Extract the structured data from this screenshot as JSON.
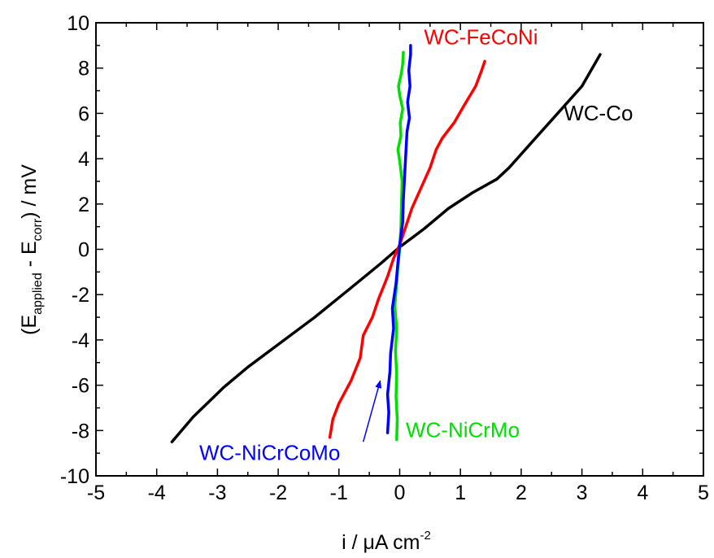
{
  "chart_data": {
    "type": "line",
    "xlabel": "i / μA cm",
    "xlabel_sup": "-2",
    "ylabel": {
      "open": "(E",
      "sub1": "applied",
      "mid": " - E",
      "sub2": "corr",
      "close": ") / mV"
    },
    "xlim": [
      -5,
      5
    ],
    "ylim": [
      -10,
      10
    ],
    "x_ticks": [
      "-5",
      "-4",
      "-3",
      "-2",
      "-1",
      "0",
      "1",
      "2",
      "3",
      "4",
      "5"
    ],
    "y_ticks": [
      "-10",
      "-8",
      "-6",
      "-4",
      "-2",
      "0",
      "2",
      "4",
      "6",
      "8",
      "10"
    ],
    "grid": false,
    "series": [
      {
        "name": "WC-Co",
        "color": "#000000",
        "points": [
          [
            -3.75,
            -8.5
          ],
          [
            -3.4,
            -7.4
          ],
          [
            -2.9,
            -6.1
          ],
          [
            -2.5,
            -5.2
          ],
          [
            -2.0,
            -4.2
          ],
          [
            -1.4,
            -3.0
          ],
          [
            -0.8,
            -1.7
          ],
          [
            -0.3,
            -0.6
          ],
          [
            0.0,
            0.1
          ],
          [
            0.4,
            0.9
          ],
          [
            0.8,
            1.8
          ],
          [
            1.2,
            2.5
          ],
          [
            1.6,
            3.1
          ],
          [
            1.8,
            3.6
          ],
          [
            2.2,
            4.8
          ],
          [
            2.6,
            6.0
          ],
          [
            3.0,
            7.2
          ],
          [
            3.3,
            8.6
          ]
        ]
      },
      {
        "name": "WC-FeCoNi",
        "color": "#ff0000",
        "points": [
          [
            -1.15,
            -8.3
          ],
          [
            -1.1,
            -7.5
          ],
          [
            -1.0,
            -6.8
          ],
          [
            -0.8,
            -5.8
          ],
          [
            -0.65,
            -4.8
          ],
          [
            -0.6,
            -3.8
          ],
          [
            -0.45,
            -3.0
          ],
          [
            -0.35,
            -2.2
          ],
          [
            -0.2,
            -1.2
          ],
          [
            -0.1,
            -0.4
          ],
          [
            0.0,
            0.2
          ],
          [
            0.1,
            1.0
          ],
          [
            0.2,
            1.8
          ],
          [
            0.35,
            2.7
          ],
          [
            0.5,
            3.6
          ],
          [
            0.6,
            4.4
          ],
          [
            0.7,
            4.9
          ],
          [
            0.9,
            5.6
          ],
          [
            1.05,
            6.3
          ],
          [
            1.25,
            7.2
          ],
          [
            1.35,
            7.9
          ],
          [
            1.4,
            8.3
          ]
        ]
      },
      {
        "name": "WC-NiCrMo",
        "color": "#00e000",
        "points": [
          [
            -0.05,
            -8.4
          ],
          [
            -0.04,
            -7.5
          ],
          [
            -0.06,
            -6.5
          ],
          [
            -0.05,
            -5.5
          ],
          [
            -0.07,
            -4.5
          ],
          [
            -0.05,
            -3.5
          ],
          [
            -0.08,
            -2.5
          ],
          [
            -0.05,
            -1.5
          ],
          [
            -0.03,
            -0.8
          ],
          [
            0.0,
            0.0
          ],
          [
            0.02,
            1.0
          ],
          [
            0.03,
            2.0
          ],
          [
            0.04,
            3.0
          ],
          [
            0.0,
            3.9
          ],
          [
            -0.03,
            4.4
          ],
          [
            0.02,
            5.0
          ],
          [
            0.01,
            5.6
          ],
          [
            0.05,
            6.2
          ],
          [
            0.0,
            6.8
          ],
          [
            -0.02,
            7.2
          ],
          [
            0.03,
            7.8
          ],
          [
            0.05,
            8.2
          ],
          [
            0.06,
            8.7
          ]
        ]
      },
      {
        "name": "WC-NiCrCoMo",
        "color": "#0000ff",
        "points": [
          [
            -0.2,
            -8.1
          ],
          [
            -0.18,
            -7.2
          ],
          [
            -0.2,
            -6.4
          ],
          [
            -0.16,
            -5.4
          ],
          [
            -0.15,
            -4.6
          ],
          [
            -0.1,
            -3.5
          ],
          [
            -0.12,
            -2.6
          ],
          [
            -0.06,
            -1.5
          ],
          [
            -0.03,
            -0.6
          ],
          [
            0.0,
            0.2
          ],
          [
            0.05,
            1.2
          ],
          [
            0.06,
            2.2
          ],
          [
            0.08,
            3.2
          ],
          [
            0.1,
            4.2
          ],
          [
            0.12,
            5.2
          ],
          [
            0.16,
            5.8
          ],
          [
            0.13,
            6.5
          ],
          [
            0.17,
            7.2
          ],
          [
            0.15,
            7.9
          ],
          [
            0.18,
            8.6
          ],
          [
            0.18,
            9.0
          ]
        ]
      }
    ],
    "annotations": [
      {
        "text": "WC-FeCoNi",
        "color": "#ff0000",
        "x": 0.4,
        "y": 9.05,
        "anchor": "start"
      },
      {
        "text": "WC-Co",
        "color": "#000000",
        "x": 2.7,
        "y": 5.7,
        "anchor": "start"
      },
      {
        "text": "WC-NiCrMo",
        "color": "#00e000",
        "x": 0.1,
        "y": -8.3,
        "anchor": "start"
      },
      {
        "text": "WC-NiCrCoMo",
        "color": "#0000ff",
        "x": -3.3,
        "y": -9.3,
        "anchor": "start"
      }
    ],
    "arrow": {
      "color": "#0000ff",
      "from": [
        -0.6,
        -8.5
      ],
      "to": [
        -0.32,
        -5.8
      ]
    }
  }
}
